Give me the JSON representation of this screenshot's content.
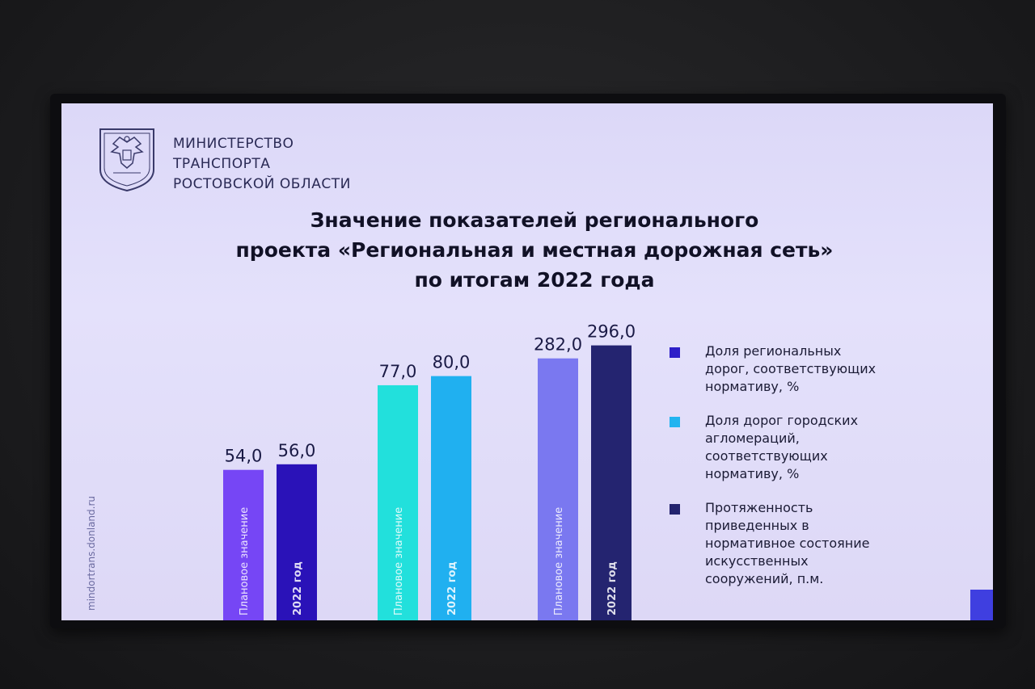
{
  "ministry": {
    "lines": [
      "МИНИСТЕРСТВО",
      "ТРАНСПОРТА",
      "РОСТОВСКОЙ ОБЛАСТИ"
    ]
  },
  "slide_title": {
    "lines": [
      "Значение показателей регионального",
      "проекта «Региональная и местная дорожная сеть»",
      "по итогам 2022 года"
    ]
  },
  "website": "mindortrans.donland.ru",
  "chart_data": {
    "type": "bar",
    "title": "Значение показателей регионального проекта «Региональная и местная дорожная сеть» по итогам 2022 года",
    "groups": [
      {
        "legend": [
          "Доля региональных",
          "дорог, соответствующих",
          "нормативу, %"
        ],
        "legend_color": "#2d1ec8",
        "bars": [
          {
            "label": "Плановое значение",
            "value": 54.0,
            "value_text": "54,0",
            "color": "#7646f5"
          },
          {
            "label": "2022 год",
            "value": 56.0,
            "value_text": "56,0",
            "color": "#2a12b8"
          }
        ]
      },
      {
        "legend": [
          "Доля дорог городских",
          "агломераций,",
          "соответствующих",
          "нормативу, %"
        ],
        "legend_color": "#22b4f0",
        "bars": [
          {
            "label": "Плановое значение",
            "value": 77.0,
            "value_text": "77,0",
            "color": "#22e0dc"
          },
          {
            "label": "2022 год",
            "value": 80.0,
            "value_text": "80,0",
            "color": "#20b0f0"
          }
        ]
      },
      {
        "legend": [
          "Протяженность",
          "приведенных в",
          "нормативное состояние",
          "искусственных",
          "сооружений, п.м."
        ],
        "legend_color": "#23236e",
        "bars": [
          {
            "label": "Плановое значение",
            "value": 282.0,
            "value_text": "282,0",
            "color": "#7a78f0"
          },
          {
            "label": "2022 год",
            "value": 296.0,
            "value_text": "296,0",
            "color": "#242470"
          }
        ]
      }
    ],
    "legend_placement": "right",
    "grid": false
  },
  "colors": {
    "screen_background": "#dedaf8",
    "title_text": "#111126",
    "accent": "#3f3fe0"
  },
  "icons": {
    "emblem": "rostov-coat-of-arms-icon"
  }
}
